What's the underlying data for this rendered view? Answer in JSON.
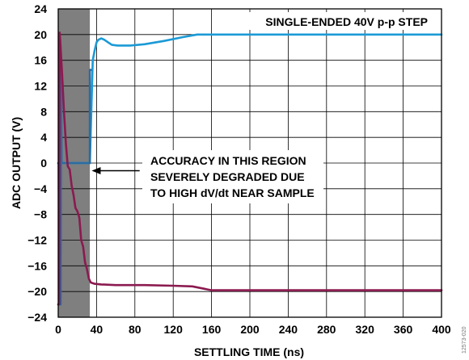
{
  "chart_data": {
    "type": "line",
    "title": "",
    "xlabel": "SETTLING TIME (ns)",
    "ylabel": "ADC OUTPUT (V)",
    "xlim": [
      0,
      400
    ],
    "ylim": [
      -24,
      24
    ],
    "xticks": [
      0,
      40,
      80,
      120,
      160,
      200,
      240,
      280,
      320,
      360,
      400
    ],
    "yticks": [
      -24,
      -20,
      -16,
      -12,
      -8,
      -4,
      0,
      4,
      8,
      12,
      16,
      20,
      24
    ],
    "grid": true,
    "shaded_region": {
      "x_from": 0,
      "x_to": 33,
      "color": "#7f7f7f"
    },
    "annotations": {
      "corner_label": "SINGLE-ENDED 40V p-p STEP",
      "region_note": [
        "ACCURACY IN THIS REGION",
        "SEVERELY DEGRADED DUE",
        "TO HIGH dV/dt NEAR SAMPLE"
      ],
      "arrow": {
        "from": [
          85,
          -1.2
        ],
        "to": [
          35,
          -1.2
        ]
      }
    },
    "figure_id": "12573-020",
    "series": [
      {
        "name": "",
        "color": "#1b9ad6",
        "x": [
          0,
          33,
          36,
          38,
          40,
          42,
          45,
          48,
          52,
          56,
          62,
          75,
          90,
          110,
          130,
          145,
          160,
          200,
          250,
          300,
          350,
          400
        ],
        "y": [
          0,
          0,
          16.0,
          17.5,
          18.8,
          19.2,
          19.4,
          19.2,
          18.8,
          18.4,
          18.3,
          18.3,
          18.5,
          19.0,
          19.6,
          20.0,
          20.0,
          20.0,
          20.0,
          20.0,
          20.0,
          20.0
        ]
      },
      {
        "name": "",
        "color": "#2a6ca1",
        "x": [
          0,
          0.5,
          1,
          1.5,
          2,
          2.5,
          3,
          3.5,
          32,
          33,
          33,
          34
        ],
        "y": [
          0,
          0,
          -22,
          -22,
          -22,
          -22,
          15,
          0,
          0,
          0,
          14.5,
          14.5
        ]
      },
      {
        "name": "",
        "color": "#8b1a4f",
        "x": [
          0,
          1,
          1.5,
          2,
          4,
          6,
          8,
          10,
          12,
          14,
          16,
          18,
          20,
          22,
          24,
          26,
          28,
          30,
          32,
          34,
          38,
          45,
          60,
          90,
          120,
          140,
          150,
          160,
          200,
          250,
          300,
          350,
          400
        ],
        "y": [
          -22,
          -22,
          20.3,
          19.2,
          14,
          8,
          3,
          -0.5,
          -1,
          -3.5,
          -5,
          -7,
          -7.5,
          -8.5,
          -12,
          -13,
          -15.5,
          -16.5,
          -18,
          -18.6,
          -18.8,
          -18.9,
          -19,
          -19.0,
          -19.1,
          -19.2,
          -19.5,
          -19.8,
          -19.8,
          -19.8,
          -19.8,
          -19.8,
          -19.8
        ]
      }
    ]
  }
}
